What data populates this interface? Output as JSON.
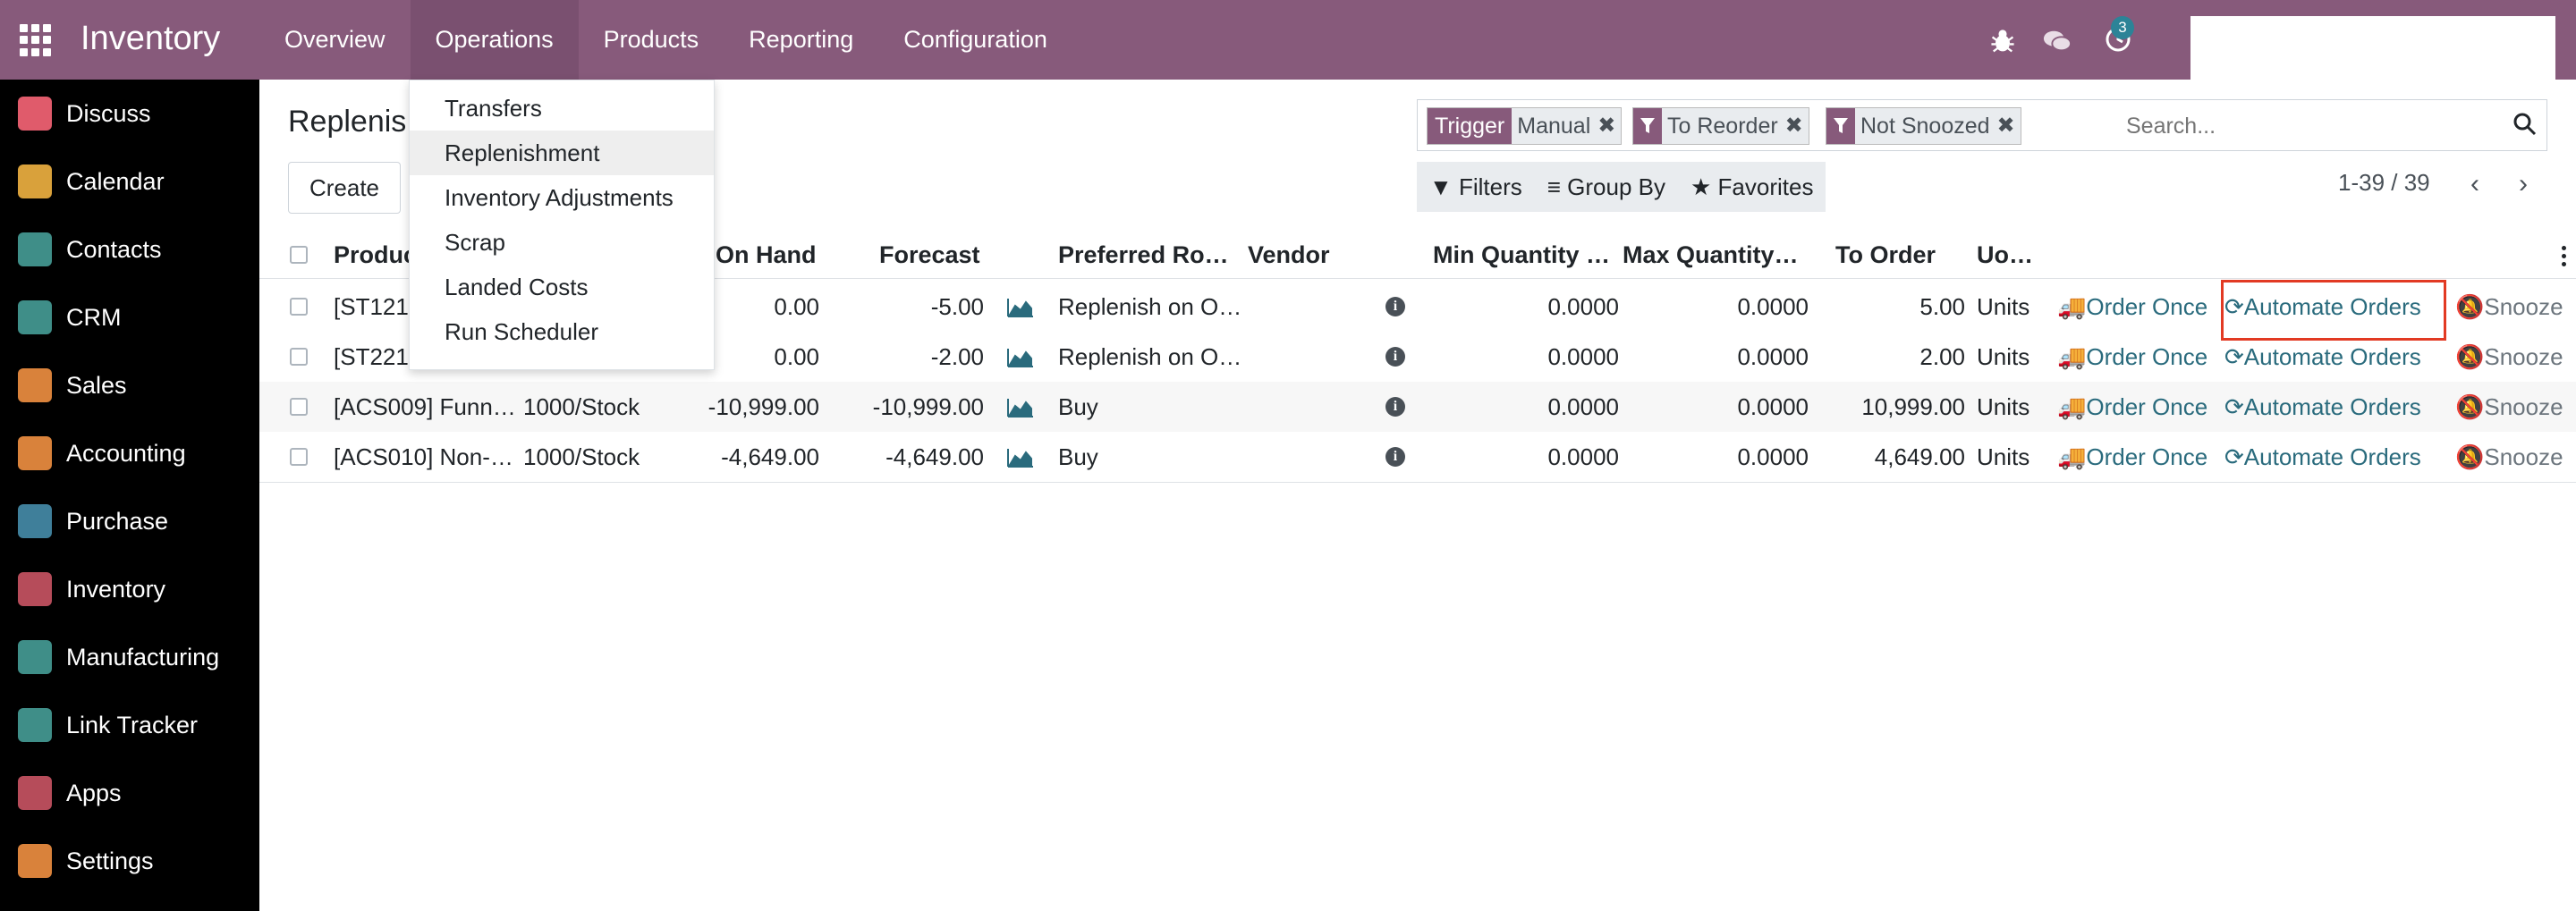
{
  "app": {
    "title": "Inventory"
  },
  "menu": [
    {
      "label": "Overview"
    },
    {
      "label": "Operations"
    },
    {
      "label": "Products"
    },
    {
      "label": "Reporting"
    },
    {
      "label": "Configuration"
    }
  ],
  "systray": {
    "activity_count": "3"
  },
  "sidebar": {
    "items": [
      {
        "label": "Discuss",
        "color": "#e05b6b"
      },
      {
        "label": "Calendar",
        "color": "#d9a13b"
      },
      {
        "label": "Contacts",
        "color": "#3f8e88"
      },
      {
        "label": "CRM",
        "color": "#3f8e88"
      },
      {
        "label": "Sales",
        "color": "#d9823b"
      },
      {
        "label": "Accounting",
        "color": "#d9823b"
      },
      {
        "label": "Purchase",
        "color": "#3f7f9a"
      },
      {
        "label": "Inventory",
        "color": "#b64c5a"
      },
      {
        "label": "Manufacturing",
        "color": "#3f8e88"
      },
      {
        "label": "Link Tracker",
        "color": "#3f8e88"
      },
      {
        "label": "Apps",
        "color": "#b64c5a"
      },
      {
        "label": "Settings",
        "color": "#d9823b"
      }
    ]
  },
  "page": {
    "title": "Replenis",
    "create_label": "Create"
  },
  "search": {
    "facets": [
      {
        "label": "Trigger",
        "value": "Manual"
      },
      {
        "label": "",
        "value": "To Reorder"
      },
      {
        "label": "",
        "value": "Not Snoozed"
      }
    ],
    "placeholder": "Search..."
  },
  "filters": {
    "filters_label": "Filters",
    "groupby_label": "Group By",
    "favorites_label": "Favorites"
  },
  "pager": {
    "text": "1-39 / 39"
  },
  "table": {
    "headers": {
      "product": "Produc",
      "on_hand": "On Hand",
      "forecast": "Forecast",
      "route": "Preferred Ro…",
      "vendor": "Vendor",
      "min_qty": "Min Quantity …",
      "max_qty": "Max Quantity…",
      "to_order": "To Order",
      "uom": "Uo…"
    },
    "rows": [
      {
        "product": "[ST121",
        "location": "",
        "on_hand": "0.00",
        "forecast": "-5.00",
        "route": "Replenish on O…",
        "min": "0.0000",
        "max": "0.0000",
        "to_order": "5.00",
        "uom": "Units"
      },
      {
        "product": "[ST221",
        "location": "",
        "on_hand": "0.00",
        "forecast": "-2.00",
        "route": "Replenish on O…",
        "min": "0.0000",
        "max": "0.0000",
        "to_order": "2.00",
        "uom": "Units"
      },
      {
        "product": "[ACS009] Funn…",
        "location": "1000/Stock",
        "on_hand": "-10,999.00",
        "forecast": "-10,999.00",
        "route": "Buy",
        "min": "0.0000",
        "max": "0.0000",
        "to_order": "10,999.00",
        "uom": "Units"
      },
      {
        "product": "[ACS010] Non-…",
        "location": "1000/Stock",
        "on_hand": "-4,649.00",
        "forecast": "-4,649.00",
        "route": "Buy",
        "min": "0.0000",
        "max": "0.0000",
        "to_order": "4,649.00",
        "uom": "Units"
      }
    ],
    "actions": {
      "order_once": "Order Once",
      "automate": "Automate Orders",
      "snooze": "Snooze"
    }
  },
  "dropdown": {
    "items": [
      {
        "label": "Transfers"
      },
      {
        "label": "Replenishment"
      },
      {
        "label": "Inventory Adjustments"
      },
      {
        "label": "Scrap"
      },
      {
        "label": "Landed Costs"
      },
      {
        "label": "Run Scheduler"
      }
    ]
  },
  "colors": {
    "brand": "#875a7b",
    "link": "#2a6b7d",
    "highlight": "#e23a23"
  }
}
